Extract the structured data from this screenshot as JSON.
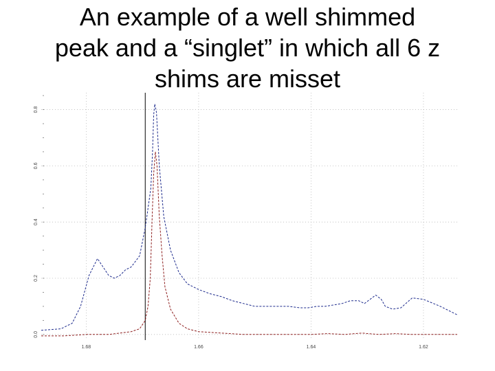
{
  "slide": {
    "title_lines": [
      "An example of a well shimmed",
      "peak and a “singlet” in which all 6 z",
      "shims are misset"
    ]
  },
  "chart_data": {
    "type": "line",
    "title": "",
    "xlabel": "",
    "ylabel": "",
    "x_reversed": true,
    "xlim": [
      1.614,
      1.688
    ],
    "ylim": [
      -0.02,
      0.86
    ],
    "grid": true,
    "x_ticks": [
      1.68,
      1.66,
      1.64,
      1.62
    ],
    "x_tick_labels": [
      "1.68",
      "1.66",
      "1.64",
      "1.62"
    ],
    "y_ticks": [
      0.0,
      0.2,
      0.4,
      0.6,
      0.8
    ],
    "y_tick_labels": [
      "0.0",
      "0.2",
      "0.4",
      "0.6",
      "0.8"
    ],
    "vline": {
      "x": 1.6695,
      "color": "#000000"
    },
    "series": [
      {
        "color": "#1c2a8c",
        "dash": "3,2",
        "x": [
          1.688,
          1.6845,
          1.6825,
          1.681,
          1.6795,
          1.678,
          1.6765,
          1.676,
          1.675,
          1.674,
          1.673,
          1.672,
          1.6705,
          1.6695,
          1.6685,
          1.6682,
          1.668,
          1.6678,
          1.6675,
          1.667,
          1.6662,
          1.665,
          1.6635,
          1.662,
          1.66,
          1.658,
          1.656,
          1.654,
          1.652,
          1.65,
          1.648,
          1.646,
          1.644,
          1.642,
          1.6405,
          1.639,
          1.6375,
          1.636,
          1.6345,
          1.633,
          1.6315,
          1.6305,
          1.6295,
          1.6285,
          1.6275,
          1.6268,
          1.6255,
          1.624,
          1.622,
          1.62,
          1.617,
          1.614
        ],
        "y": [
          0.015,
          0.02,
          0.04,
          0.1,
          0.21,
          0.27,
          0.225,
          0.21,
          0.2,
          0.21,
          0.23,
          0.24,
          0.28,
          0.38,
          0.52,
          0.65,
          0.78,
          0.82,
          0.79,
          0.6,
          0.42,
          0.3,
          0.22,
          0.18,
          0.16,
          0.145,
          0.135,
          0.12,
          0.11,
          0.1,
          0.1,
          0.1,
          0.1,
          0.095,
          0.095,
          0.1,
          0.1,
          0.105,
          0.11,
          0.12,
          0.12,
          0.11,
          0.125,
          0.14,
          0.125,
          0.1,
          0.09,
          0.095,
          0.13,
          0.125,
          0.1,
          0.07
        ]
      },
      {
        "color": "#8c1c1c",
        "dash": "3,2",
        "x": [
          1.688,
          1.684,
          1.68,
          1.676,
          1.674,
          1.672,
          1.6705,
          1.6695,
          1.669,
          1.6686,
          1.6683,
          1.668,
          1.6677,
          1.6674,
          1.667,
          1.6665,
          1.666,
          1.665,
          1.6635,
          1.662,
          1.66,
          1.656,
          1.652,
          1.648,
          1.644,
          1.64,
          1.637,
          1.634,
          1.631,
          1.628,
          1.625,
          1.622,
          1.618,
          1.614
        ],
        "y": [
          -0.005,
          -0.005,
          0.0,
          0.0,
          0.005,
          0.01,
          0.02,
          0.05,
          0.1,
          0.2,
          0.4,
          0.57,
          0.65,
          0.6,
          0.42,
          0.28,
          0.17,
          0.09,
          0.04,
          0.02,
          0.01,
          0.005,
          0.0,
          0.0,
          0.0,
          0.0,
          0.003,
          0.0,
          0.005,
          0.0,
          0.003,
          0.0,
          0.0,
          0.0
        ]
      }
    ]
  }
}
